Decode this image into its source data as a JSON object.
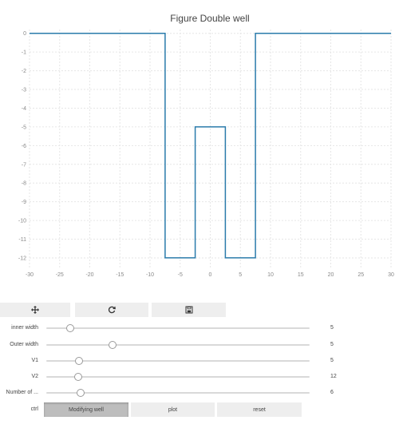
{
  "chart_data": {
    "type": "line",
    "title": "Figure Double well",
    "xlim": [
      -30,
      30
    ],
    "ylim": [
      -12.6,
      0.2
    ],
    "x_ticks": [
      -30,
      -25,
      -20,
      -15,
      -10,
      -5,
      0,
      5,
      10,
      15,
      20,
      25,
      30
    ],
    "y_ticks": [
      0,
      -1,
      -2,
      -3,
      -4,
      -5,
      -6,
      -7,
      -8,
      -9,
      -10,
      -11,
      -12
    ],
    "grid": true,
    "series": [
      {
        "color": "#2a7bab",
        "x": [
          -30,
          -7.5,
          -7.5,
          -2.5,
          -2.5,
          2.5,
          2.5,
          7.5,
          7.5,
          30
        ],
        "y": [
          0,
          0,
          -12,
          -12,
          -5,
          -5,
          -12,
          -12,
          0,
          0
        ]
      }
    ]
  },
  "toolbar": {
    "pan_icon": "move-icon",
    "refresh_icon": "refresh-icon",
    "save_icon": "floppy-disk-icon"
  },
  "sliders": [
    {
      "label": "inner width",
      "min": 0,
      "max": 100,
      "fraction": 0.09,
      "value": "5"
    },
    {
      "label": "Outer width",
      "min": 0,
      "max": 100,
      "fraction": 0.25,
      "value": "5"
    },
    {
      "label": "V1",
      "min": 0,
      "max": 100,
      "fraction": 0.125,
      "value": "5"
    },
    {
      "label": "V2",
      "min": 0,
      "max": 100,
      "fraction": 0.12,
      "value": "12"
    },
    {
      "label": "Number of ...",
      "min": 0,
      "max": 100,
      "fraction": 0.13,
      "value": "6"
    }
  ],
  "controls": {
    "label": "ctrl",
    "buttons": [
      {
        "label": "Modifying well",
        "active": true
      },
      {
        "label": "plot",
        "active": false
      },
      {
        "label": "reset",
        "active": false
      }
    ]
  }
}
